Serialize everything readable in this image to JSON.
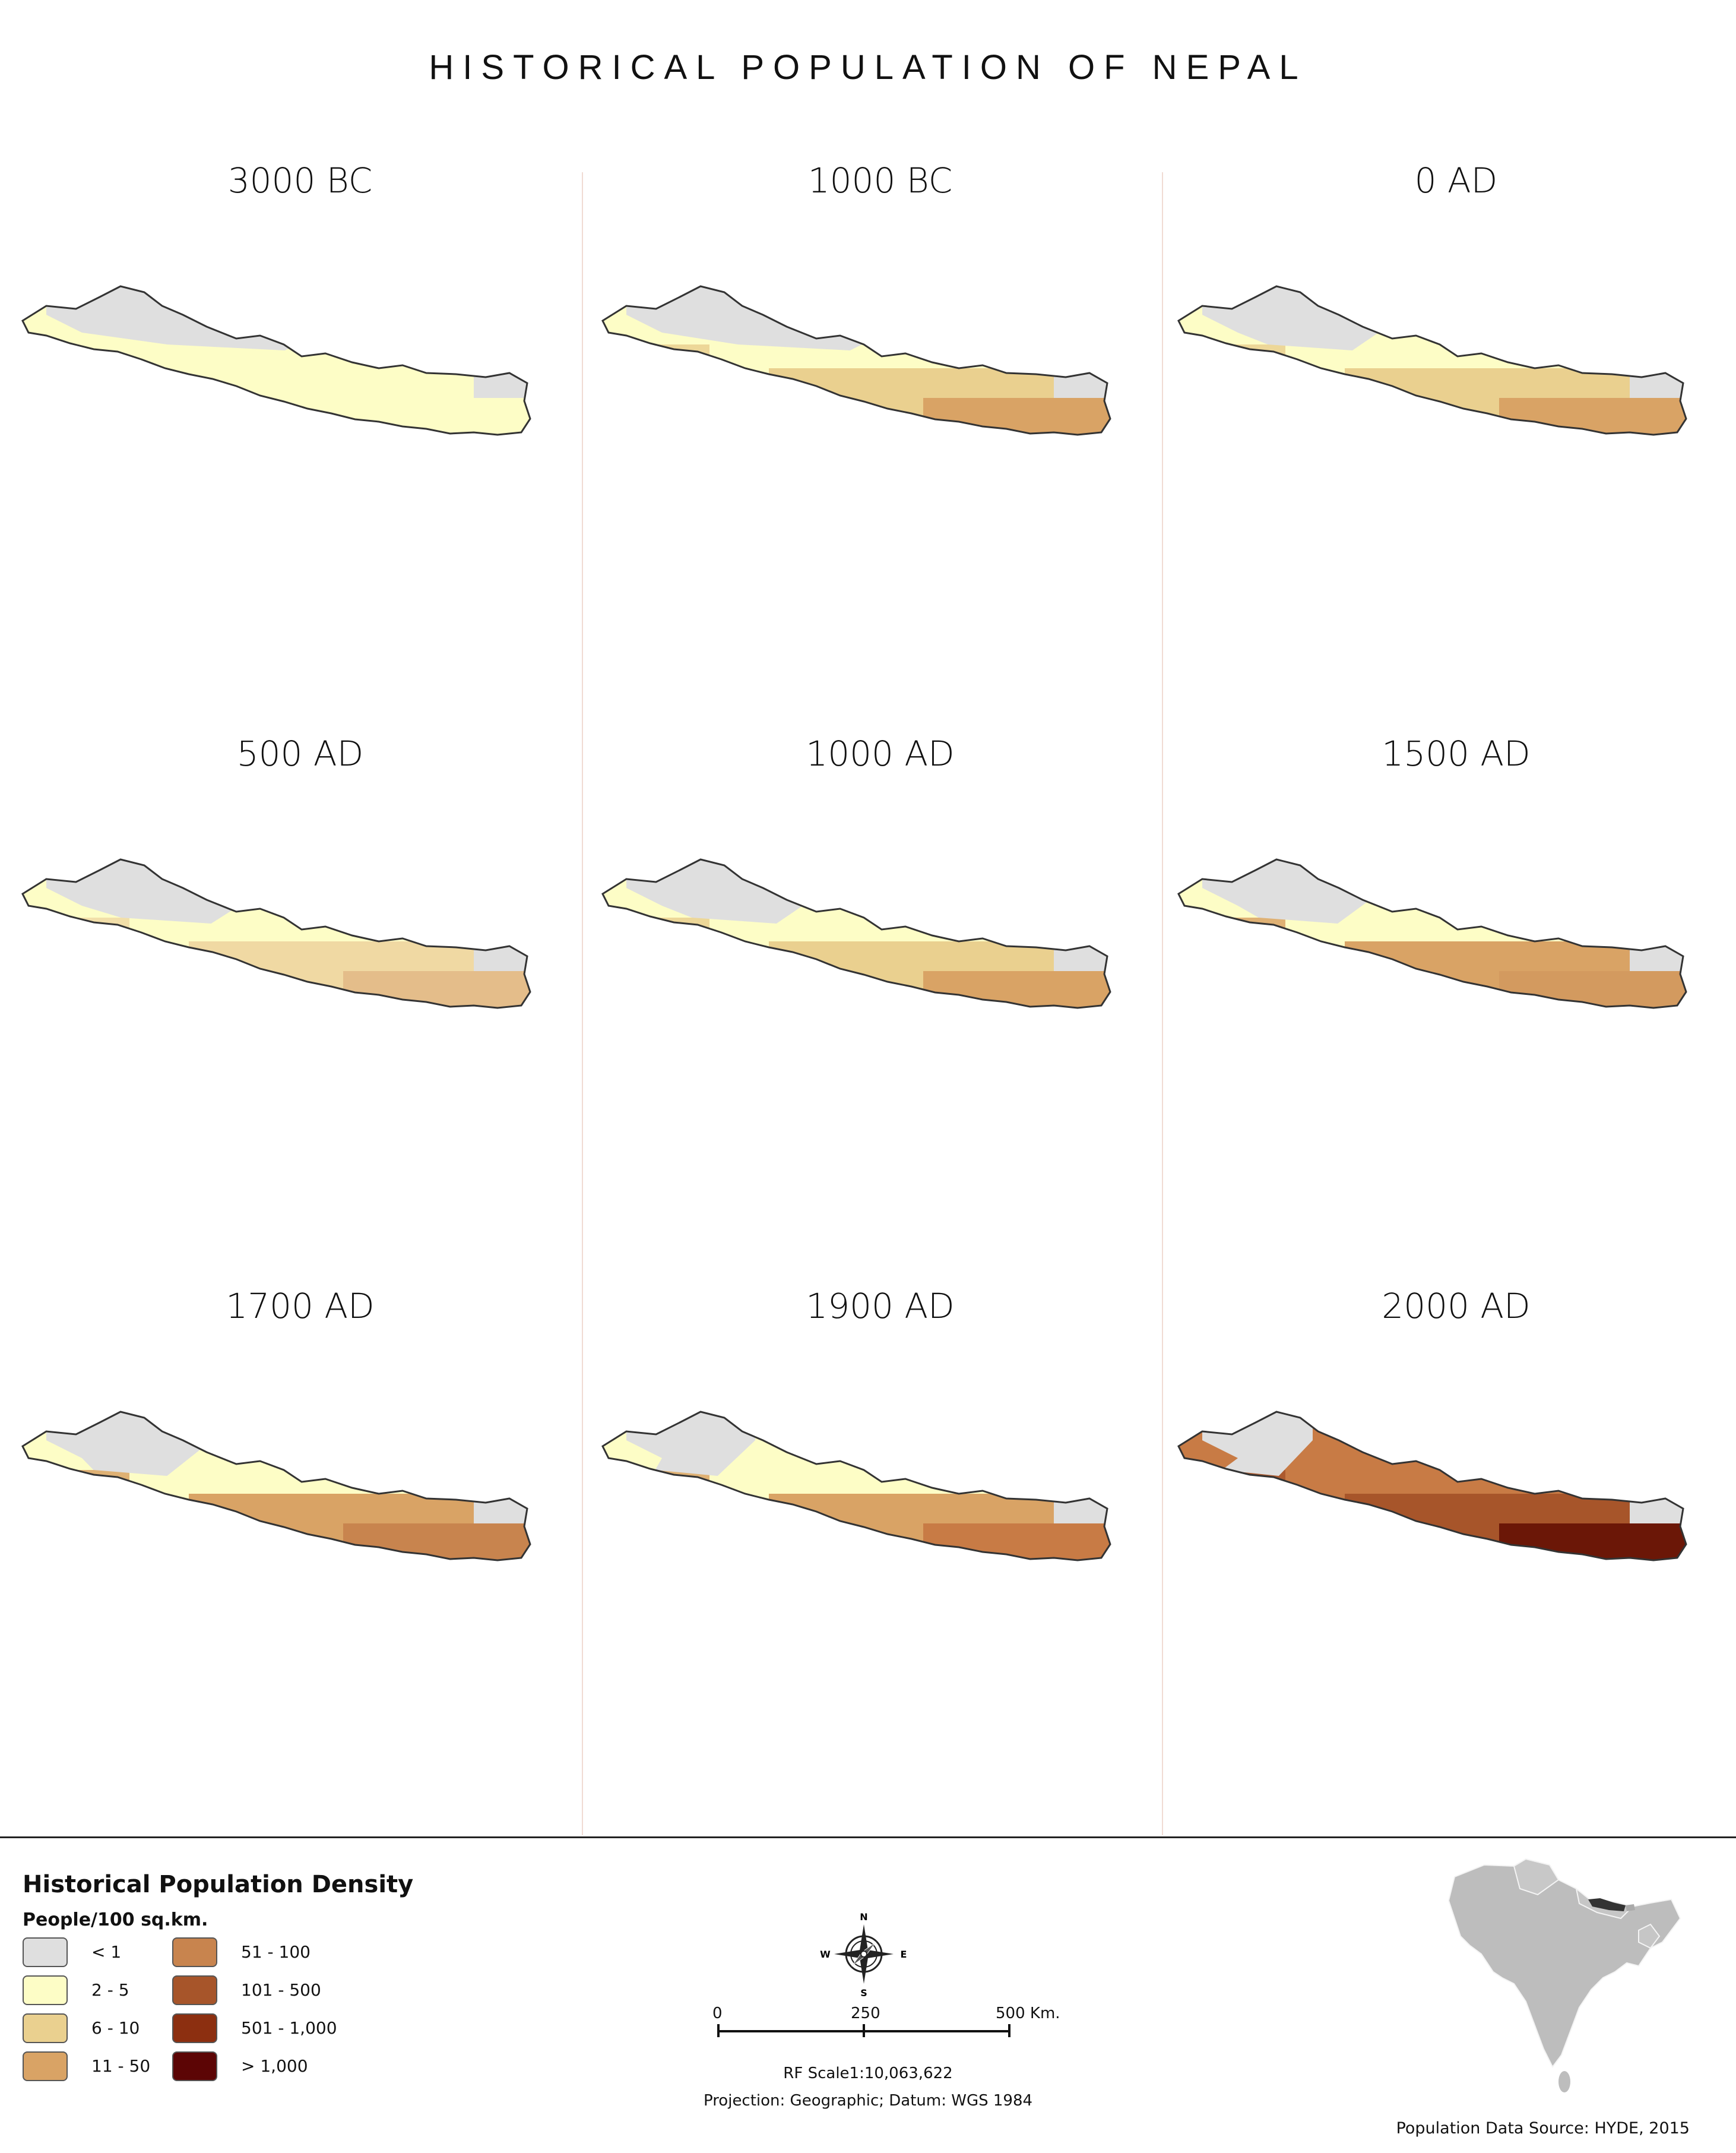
{
  "title": "HISTORICAL POPULATION OF NEPAL",
  "panels": [
    {
      "label": "3000 BC",
      "dominant": "#fdfdc6",
      "secondary": "#fdfdc6",
      "accent": "#fdfdc6",
      "snow": 0.85
    },
    {
      "label": "1000 BC",
      "dominant": "#fdfdc6",
      "secondary": "#ead08f",
      "accent": "#d9a365",
      "snow": 0.8
    },
    {
      "label": "0 AD",
      "dominant": "#fdfdc6",
      "secondary": "#ead08f",
      "accent": "#d9a365",
      "snow": 0.55
    },
    {
      "label": "500 AD",
      "dominant": "#fdfdc6",
      "secondary": "#f0d9a3",
      "accent": "#e4bd8a",
      "snow": 0.6
    },
    {
      "label": "1000 AD",
      "dominant": "#fdfdc6",
      "secondary": "#ead08f",
      "accent": "#d9a365",
      "snow": 0.55
    },
    {
      "label": "1500 AD",
      "dominant": "#fdfdc6",
      "secondary": "#d9a365",
      "accent": "#d39a5f",
      "snow": 0.5
    },
    {
      "label": "1700 AD",
      "dominant": "#fdfdc6",
      "secondary": "#d9a365",
      "accent": "#c8844e",
      "snow": 0.45
    },
    {
      "label": "1900 AD",
      "dominant": "#fdfdc6",
      "secondary": "#d9a365",
      "accent": "#c87b45",
      "snow": 0.35
    },
    {
      "label": "2000 AD",
      "dominant": "#c87b45",
      "secondary": "#a7552a",
      "accent": "#6b1707",
      "snow": 0.3
    }
  ],
  "legend": {
    "title": "Historical Population Density",
    "subtitle": "People/100 sq.km.",
    "classes": [
      {
        "label": "< 1",
        "color": "#dfdfdf"
      },
      {
        "label": "2 - 5",
        "color": "#fdfdc6"
      },
      {
        "label": "6 - 10",
        "color": "#ead08f"
      },
      {
        "label": "11 - 50",
        "color": "#d9a365"
      },
      {
        "label": "51 - 100",
        "color": "#c8844e"
      },
      {
        "label": "101 - 500",
        "color": "#a7552a"
      },
      {
        "label": "501 - 1,000",
        "color": "#8c2f10"
      },
      {
        "label": "> 1,000",
        "color": "#5c0505"
      }
    ]
  },
  "compass": {
    "n": "N",
    "s": "S",
    "e": "E",
    "w": "W"
  },
  "scale": {
    "ticks": [
      "0",
      "250",
      "500 Km."
    ]
  },
  "rf_scale": "RF Scale1:10,063,622",
  "projection": "Projection: Geographic; Datum: WGS 1984",
  "source": "Population Data Source: HYDE, 2015"
}
